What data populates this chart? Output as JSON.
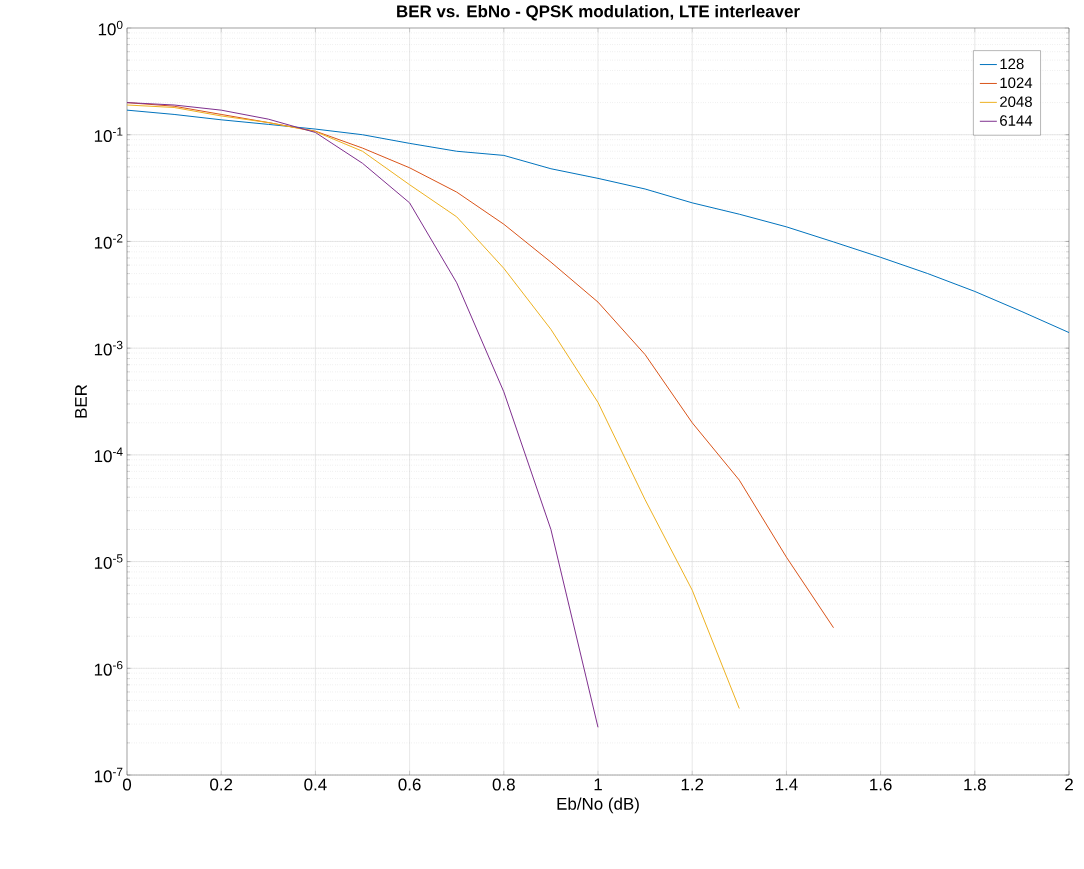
{
  "chart_data": {
    "type": "line",
    "title": "BER vs. EbNo - QPSK modulation, LTE interleaver",
    "xlabel": "Eb/No (dB)",
    "ylabel": "BER",
    "x": [
      0,
      0.1,
      0.2,
      0.3,
      0.4,
      0.5,
      0.6,
      0.7,
      0.8,
      0.9,
      1.0,
      1.1,
      1.2,
      1.3,
      1.4,
      1.5,
      1.6,
      1.7,
      1.8,
      1.9,
      2.0
    ],
    "series": [
      {
        "name": "128",
        "color": "#0072bd",
        "values": [
          0.17,
          0.155,
          0.138,
          0.125,
          0.113,
          0.1,
          0.083,
          0.07,
          0.064,
          0.048,
          0.039,
          0.031,
          0.023,
          0.018,
          0.0137,
          0.0099,
          0.0071,
          0.005,
          0.0034,
          0.0022,
          0.0014
        ]
      },
      {
        "name": "1024",
        "color": "#d95319",
        "values": [
          0.2,
          0.185,
          0.155,
          0.13,
          0.108,
          0.075,
          0.049,
          0.029,
          0.0145,
          0.0064,
          0.0027,
          0.00087,
          0.0002,
          5.8e-05,
          1.1e-05,
          2.4e-06,
          null,
          null,
          null,
          null,
          null
        ]
      },
      {
        "name": "2048",
        "color": "#edb120",
        "values": [
          0.19,
          0.18,
          0.15,
          0.13,
          0.107,
          0.07,
          0.034,
          0.017,
          0.0056,
          0.0015,
          0.00031,
          3.8e-05,
          5.4e-06,
          4.2e-07,
          null,
          null,
          null,
          null,
          null,
          null,
          null
        ]
      },
      {
        "name": "6144",
        "color": "#7e2f8e",
        "values": [
          0.2,
          0.19,
          0.17,
          0.14,
          0.105,
          0.054,
          0.023,
          0.0041,
          0.00039,
          2e-05,
          2.8e-07,
          null,
          null,
          null,
          null,
          null,
          null,
          null,
          null,
          null,
          null
        ]
      }
    ],
    "xlim": [
      0,
      2
    ],
    "xticks": [
      0,
      0.2,
      0.4,
      0.6,
      0.8,
      1,
      1.2,
      1.4,
      1.6,
      1.8,
      2
    ],
    "ylim": [
      1e-07,
      1
    ],
    "yticks": [
      {
        "value": 1e-07,
        "label": "10$^{-7}$"
      },
      {
        "value": 1e-06,
        "label": "10$^{-6}$"
      },
      {
        "value": 1e-05,
        "label": "10$^{-5}$"
      },
      {
        "value": 0.0001,
        "label": "10$^{-4}$"
      },
      {
        "value": 0.001,
        "label": "10$^{-3}$"
      },
      {
        "value": 0.01,
        "label": "10$^{-2}$"
      },
      {
        "value": 0.1,
        "label": "10$^{-1}$"
      },
      {
        "value": 1,
        "label": "10$^{0}$"
      }
    ],
    "log": "y",
    "grid": true,
    "legend": "top right",
    "marker": "none",
    "line_style": "solid"
  }
}
